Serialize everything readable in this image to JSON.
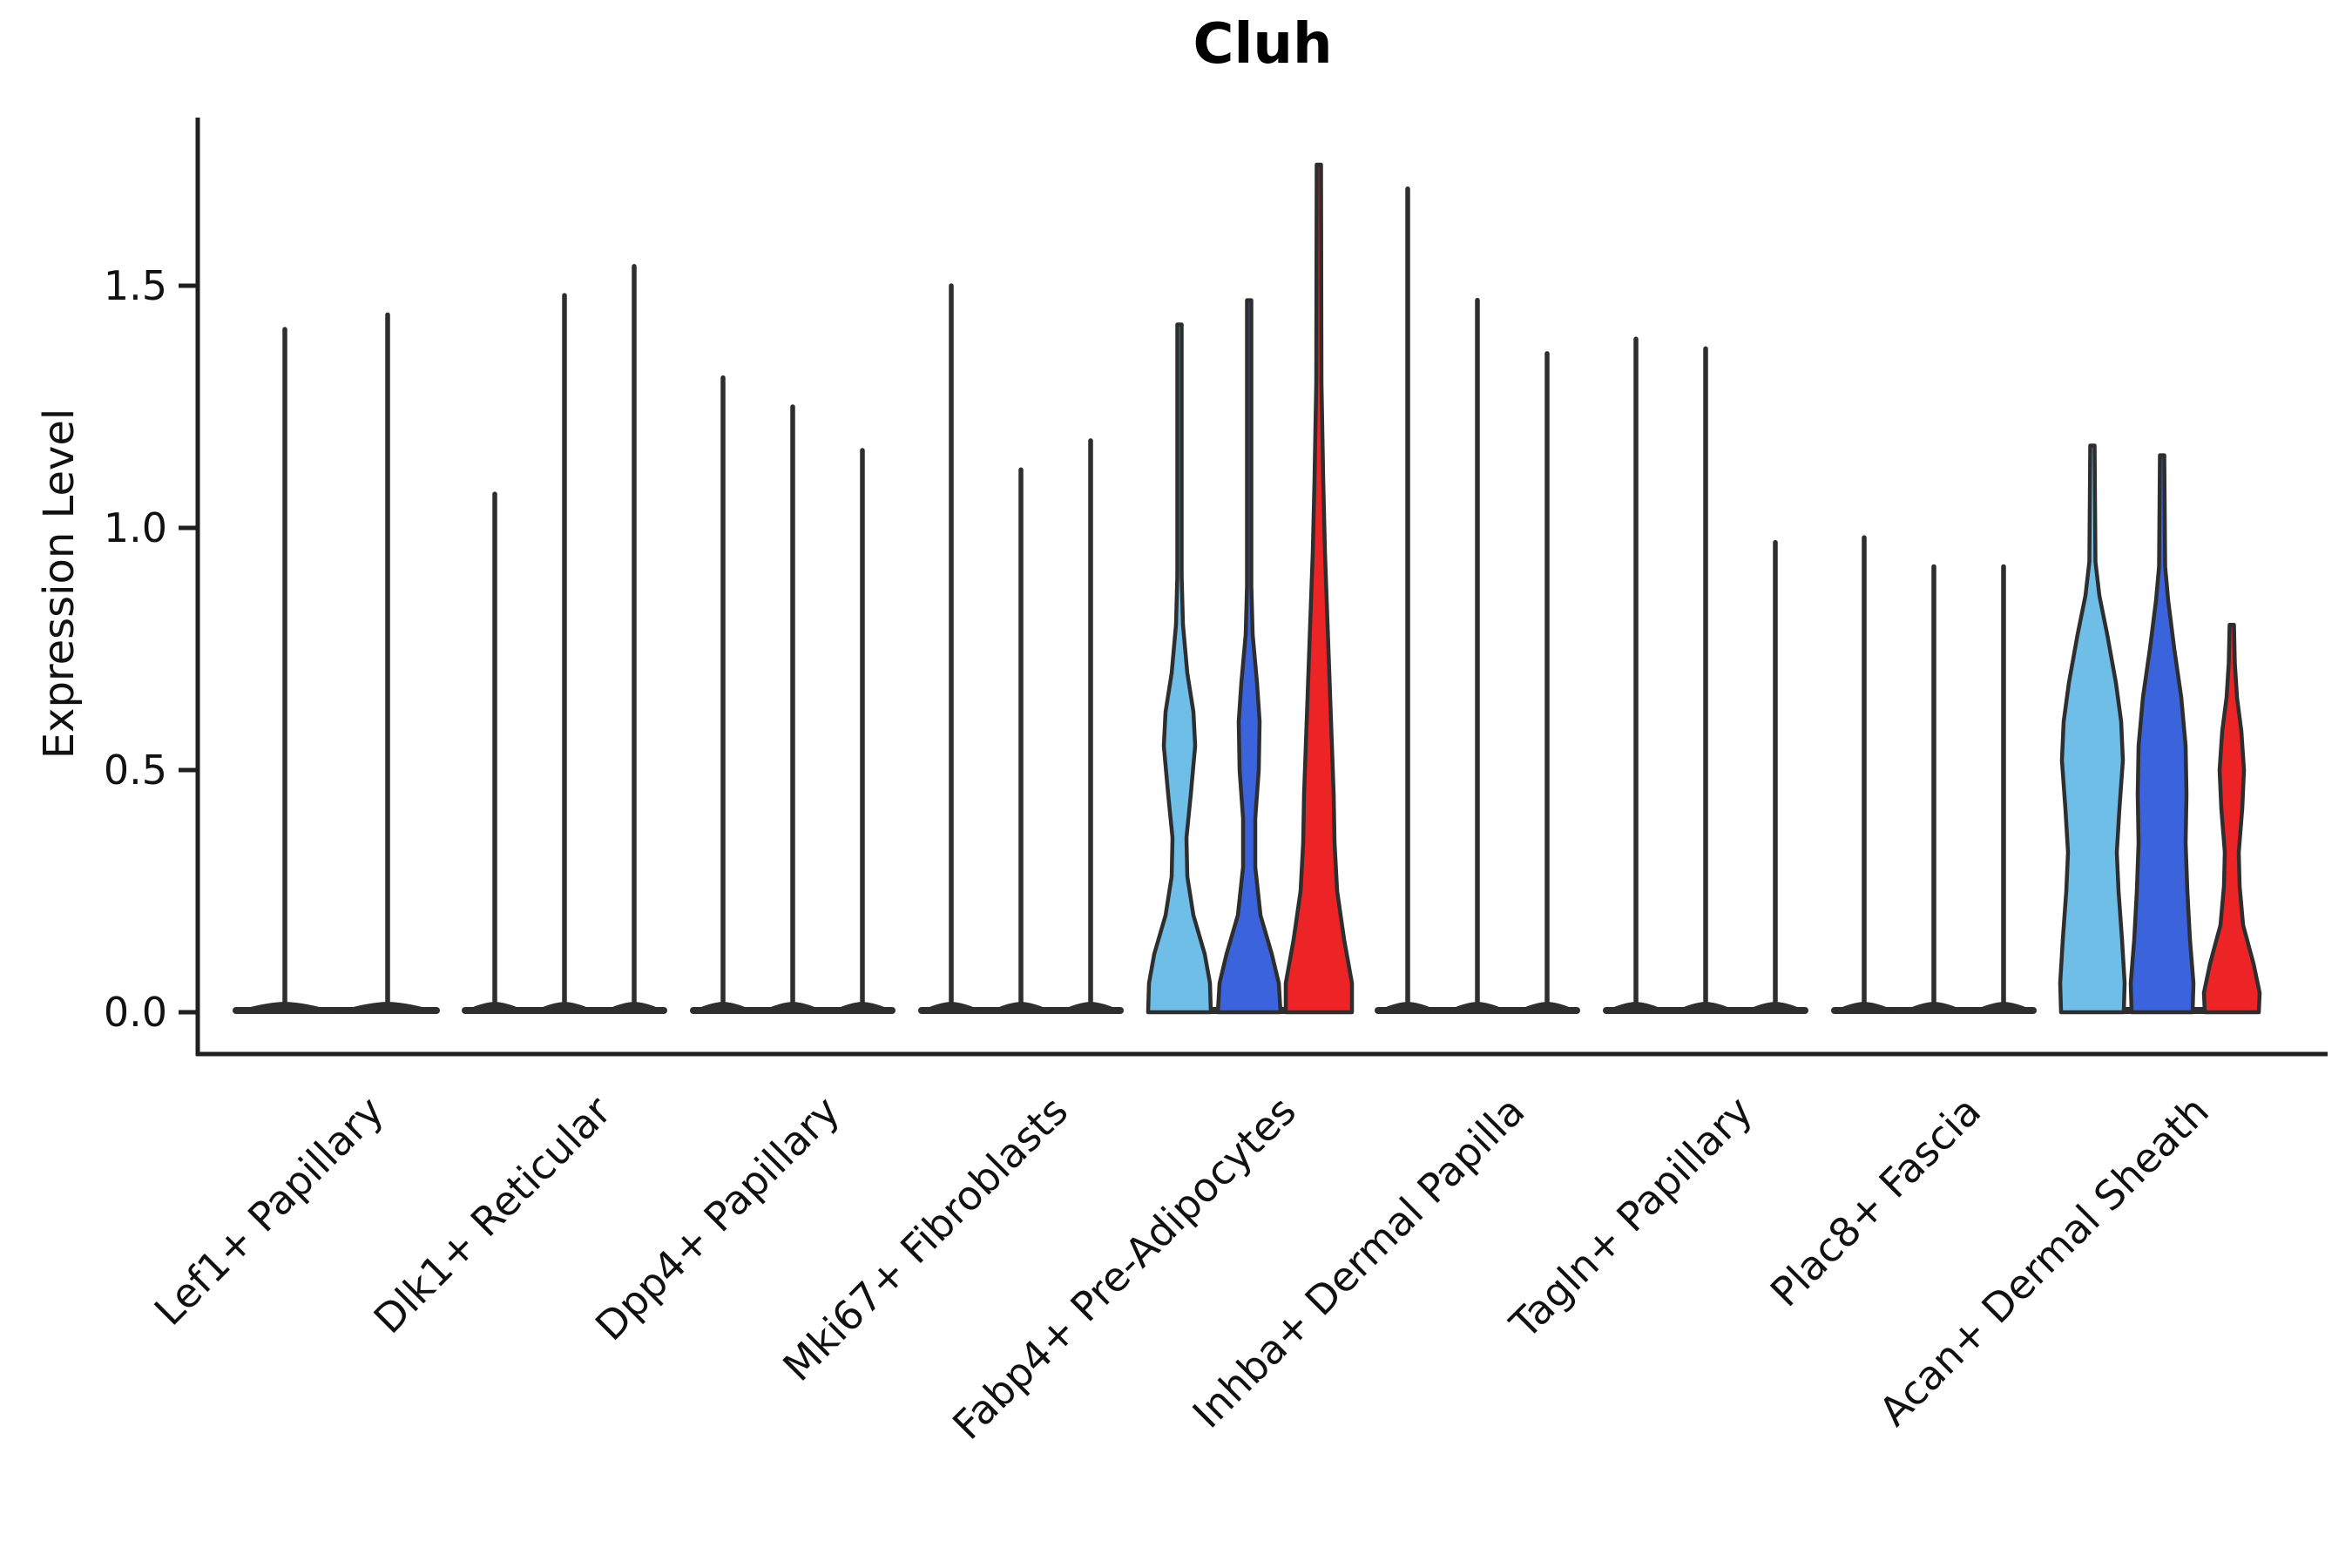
{
  "title": "Cluh",
  "y_axis": {
    "label": "Expression Level",
    "ticks": [
      "0.0",
      "0.5",
      "1.0",
      "1.5"
    ],
    "tick_values": [
      0.0,
      0.5,
      1.0,
      1.5
    ]
  },
  "colors": {
    "light_blue": "#6FBEE8",
    "dark_blue": "#3A63DC",
    "red": "#EC2426",
    "dark": "#2E2E2E",
    "spine": "#1f1f1f",
    "text": "#111111"
  },
  "chart_data": {
    "type": "violin",
    "title": "Cluh",
    "ylabel": "Expression Level",
    "ylim": [
      -0.09,
      1.84
    ],
    "grid": false,
    "legend": "none",
    "series": [
      "light-blue",
      "dark-blue",
      "red"
    ],
    "series_colors": [
      "#6FBEE8",
      "#3A63DC",
      "#EC2426"
    ],
    "categories": [
      "Lef1+ Papillary",
      "Dlk1+ Reticular",
      "Dpp4+ Papillary",
      "Mki67+ Fibroblasts",
      "Fabp4+ Pre-Adipocytes",
      "Inhba+ Dermal Papilla",
      "Tagln+ Papillary",
      "Plac8+ Fascia",
      "Acan+ Dermal Sheath"
    ],
    "groups": [
      {
        "category": "Lef1+ Papillary",
        "violins": [
          {
            "series": "light-blue",
            "dx": -59,
            "style": "thin",
            "top": 1.41,
            "base_halfwidth": 60
          },
          {
            "series": "red",
            "dx": 59,
            "style": "thin",
            "top": 1.44,
            "base_halfwidth": 60
          }
        ]
      },
      {
        "category": "Dlk1+ Reticular",
        "violins": [
          {
            "series": "light-blue",
            "dx": -80,
            "style": "thin",
            "top": 1.07,
            "base_halfwidth": 38
          },
          {
            "series": "dark-blue",
            "dx": 0,
            "style": "thin",
            "top": 1.48,
            "base_halfwidth": 38
          },
          {
            "series": "red",
            "dx": 80,
            "style": "thin",
            "top": 1.54,
            "base_halfwidth": 38
          }
        ]
      },
      {
        "category": "Dpp4+ Papillary",
        "violins": [
          {
            "series": "light-blue",
            "dx": -80,
            "style": "thin",
            "top": 1.31,
            "base_halfwidth": 38
          },
          {
            "series": "dark-blue",
            "dx": 0,
            "style": "thin",
            "top": 1.25,
            "base_halfwidth": 38
          },
          {
            "series": "red",
            "dx": 80,
            "style": "thin",
            "top": 1.16,
            "base_halfwidth": 38
          }
        ]
      },
      {
        "category": "Mki67+ Fibroblasts",
        "violins": [
          {
            "series": "light-blue",
            "dx": -80,
            "style": "thin",
            "top": 1.5,
            "base_halfwidth": 38
          },
          {
            "series": "dark-blue",
            "dx": 0,
            "style": "thin",
            "top": 1.12,
            "base_halfwidth": 38
          },
          {
            "series": "red",
            "dx": 80,
            "style": "thin",
            "top": 1.18,
            "base_halfwidth": 38
          }
        ]
      },
      {
        "category": "Fabp4+ Pre-Adipocytes",
        "violins": [
          {
            "series": "light-blue",
            "dx": -80,
            "style": "violin",
            "top": 1.42,
            "fill": "#6FBEE8",
            "profile": [
              [
                0,
                36
              ],
              [
                0.06,
                35
              ],
              [
                0.12,
                29
              ],
              [
                0.2,
                16
              ],
              [
                0.28,
                9
              ],
              [
                0.36,
                8
              ],
              [
                0.45,
                13
              ],
              [
                0.55,
                18
              ],
              [
                0.62,
                16
              ],
              [
                0.7,
                9
              ],
              [
                0.8,
                4
              ],
              [
                0.9,
                2.5
              ],
              [
                1.42,
                2.5
              ]
            ]
          },
          {
            "series": "dark-blue",
            "dx": 0,
            "style": "violin",
            "top": 1.47,
            "fill": "#3A63DC",
            "profile": [
              [
                0,
                36
              ],
              [
                0.06,
                34
              ],
              [
                0.12,
                26
              ],
              [
                0.2,
                13
              ],
              [
                0.3,
                7
              ],
              [
                0.4,
                7
              ],
              [
                0.5,
                11
              ],
              [
                0.6,
                12
              ],
              [
                0.68,
                9
              ],
              [
                0.78,
                4
              ],
              [
                0.88,
                2.5
              ],
              [
                1.47,
                2.5
              ]
            ]
          },
          {
            "series": "red",
            "dx": 80,
            "style": "violin",
            "top": 1.75,
            "fill": "#EC2426",
            "profile": [
              [
                0,
                38
              ],
              [
                0.06,
                38
              ],
              [
                0.15,
                29
              ],
              [
                0.25,
                21
              ],
              [
                0.35,
                18
              ],
              [
                0.45,
                17
              ],
              [
                0.55,
                15
              ],
              [
                0.65,
                13
              ],
              [
                0.75,
                11
              ],
              [
                0.85,
                9
              ],
              [
                0.95,
                7
              ],
              [
                1.1,
                5
              ],
              [
                1.3,
                3
              ],
              [
                1.75,
                2.5
              ]
            ]
          }
        ]
      },
      {
        "category": "Inhba+ Dermal Papilla",
        "violins": [
          {
            "series": "light-blue",
            "dx": -80,
            "style": "thin",
            "top": 1.7,
            "base_halfwidth": 38
          },
          {
            "series": "dark-blue",
            "dx": 0,
            "style": "thin",
            "top": 1.47,
            "base_halfwidth": 38
          },
          {
            "series": "red",
            "dx": 80,
            "style": "thin",
            "top": 1.36,
            "base_halfwidth": 38
          }
        ]
      },
      {
        "category": "Tagln+ Papillary",
        "violins": [
          {
            "series": "light-blue",
            "dx": -80,
            "style": "thin",
            "top": 1.39,
            "base_halfwidth": 38
          },
          {
            "series": "dark-blue",
            "dx": 0,
            "style": "thin",
            "top": 1.37,
            "base_halfwidth": 38
          },
          {
            "series": "red",
            "dx": 80,
            "style": "thin",
            "top": 0.97,
            "base_halfwidth": 38
          }
        ]
      },
      {
        "category": "Plac8+ Fascia",
        "violins": [
          {
            "series": "light-blue",
            "dx": -80,
            "style": "thin",
            "top": 0.98,
            "base_halfwidth": 38
          },
          {
            "series": "dark-blue",
            "dx": 0,
            "style": "thin",
            "top": 0.92,
            "base_halfwidth": 38
          },
          {
            "series": "red",
            "dx": 80,
            "style": "thin",
            "top": 0.92,
            "base_halfwidth": 38
          }
        ]
      },
      {
        "category": "Acan+ Dermal Sheath",
        "violins": [
          {
            "series": "light-blue",
            "dx": -80,
            "style": "violin",
            "top": 1.17,
            "fill": "#6FBEE8",
            "profile": [
              [
                0,
                36
              ],
              [
                0.06,
                37
              ],
              [
                0.15,
                34
              ],
              [
                0.25,
                30
              ],
              [
                0.33,
                28
              ],
              [
                0.42,
                31
              ],
              [
                0.52,
                35
              ],
              [
                0.6,
                33
              ],
              [
                0.68,
                27
              ],
              [
                0.78,
                17
              ],
              [
                0.86,
                8
              ],
              [
                0.93,
                3.5
              ],
              [
                1.17,
                2.5
              ]
            ]
          },
          {
            "series": "dark-blue",
            "dx": 0,
            "style": "violin",
            "top": 1.15,
            "fill": "#3A63DC",
            "profile": [
              [
                0,
                35
              ],
              [
                0.06,
                36
              ],
              [
                0.15,
                32
              ],
              [
                0.25,
                29
              ],
              [
                0.35,
                27
              ],
              [
                0.45,
                28
              ],
              [
                0.55,
                27
              ],
              [
                0.65,
                22
              ],
              [
                0.75,
                14
              ],
              [
                0.85,
                7
              ],
              [
                0.92,
                3.5
              ],
              [
                1.15,
                2.5
              ]
            ]
          },
          {
            "series": "red",
            "dx": 80,
            "style": "violin",
            "top": 0.8,
            "fill": "#EC2426",
            "profile": [
              [
                0,
                31
              ],
              [
                0.04,
                32
              ],
              [
                0.1,
                25
              ],
              [
                0.18,
                13
              ],
              [
                0.26,
                9
              ],
              [
                0.33,
                8
              ],
              [
                0.42,
                12
              ],
              [
                0.5,
                14
              ],
              [
                0.58,
                11
              ],
              [
                0.65,
                6
              ],
              [
                0.72,
                3.5
              ],
              [
                0.8,
                2.5
              ]
            ]
          }
        ]
      }
    ]
  }
}
